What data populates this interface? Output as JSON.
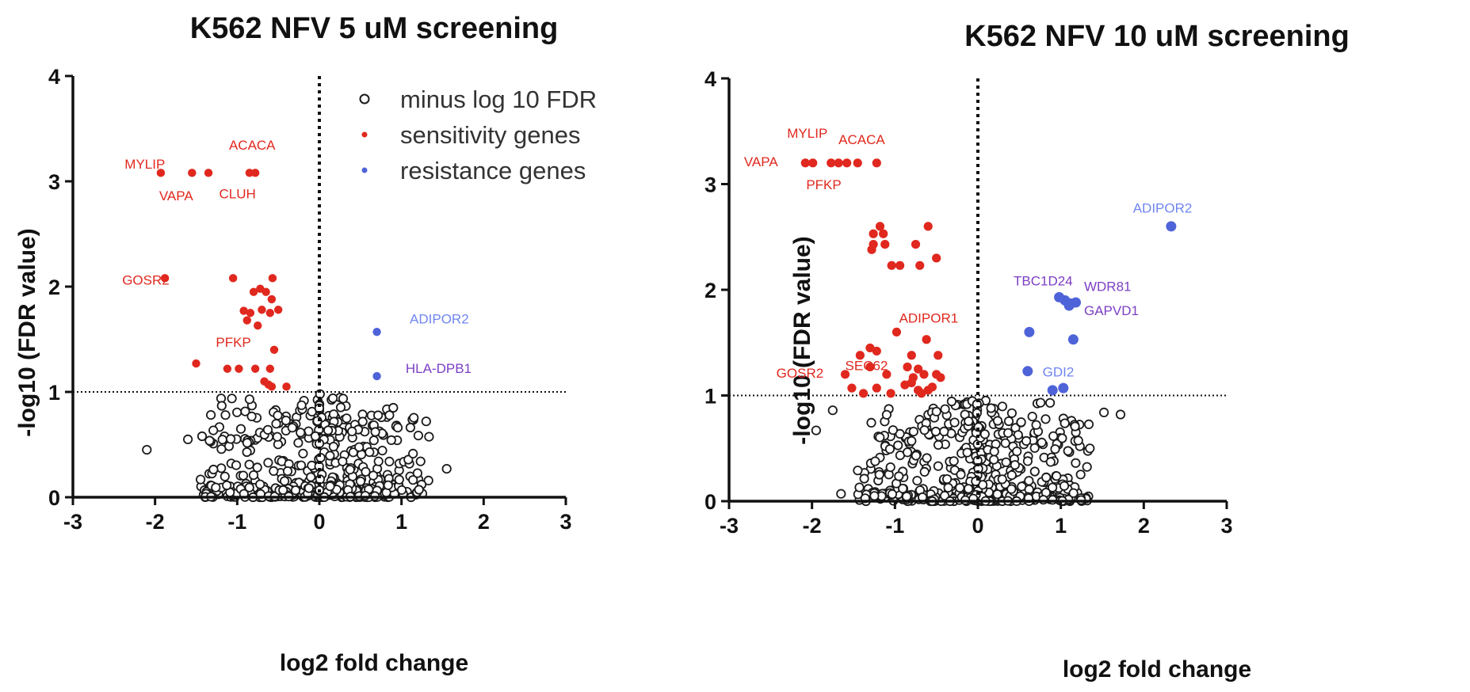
{
  "colors": {
    "sensitivity": "#e0281e",
    "resistance": "#4f63d9",
    "resistance_label": "#7b3fc4",
    "resistance_label_light": "#6f86f0",
    "null_point": "#1a1a1a"
  },
  "legend": [
    {
      "label": "minus log 10 FDR",
      "kind": "null"
    },
    {
      "label": "sensitivity genes",
      "kind": "sensitivity"
    },
    {
      "label": "resistance genes",
      "kind": "resistance"
    }
  ],
  "chart_data": [
    {
      "type": "scatter",
      "title": "K562 NFV 5 uM screening",
      "xlabel": "log2 fold change",
      "ylabel": "-log10 (FDR value)",
      "xlim": [
        -3,
        3
      ],
      "ylim": [
        0,
        4
      ],
      "x_ticks": [
        "-3",
        "-2",
        "-1",
        "0",
        "1",
        "2",
        "3"
      ],
      "y_ticks": [
        "0",
        "1",
        "2",
        "3",
        "4"
      ],
      "threshold_y": 1,
      "threshold_x": 0,
      "legend_position": "top-right",
      "sensitivity_points": [
        [
          -1.93,
          3.08
        ],
        [
          -1.55,
          3.08
        ],
        [
          -1.35,
          3.08
        ],
        [
          -0.85,
          3.08
        ],
        [
          -0.78,
          3.08
        ],
        [
          -1.88,
          2.08
        ],
        [
          -1.05,
          2.08
        ],
        [
          -0.57,
          2.08
        ],
        [
          -0.8,
          1.95
        ],
        [
          -0.72,
          1.98
        ],
        [
          -0.65,
          1.95
        ],
        [
          -0.58,
          1.88
        ],
        [
          -0.92,
          1.77
        ],
        [
          -0.84,
          1.75
        ],
        [
          -0.7,
          1.78
        ],
        [
          -0.6,
          1.75
        ],
        [
          -0.5,
          1.78
        ],
        [
          -0.88,
          1.68
        ],
        [
          -0.75,
          1.63
        ],
        [
          -0.55,
          1.4
        ],
        [
          -1.5,
          1.27
        ],
        [
          -1.12,
          1.22
        ],
        [
          -0.98,
          1.22
        ],
        [
          -0.78,
          1.22
        ],
        [
          -0.6,
          1.22
        ],
        [
          -0.67,
          1.1
        ],
        [
          -0.62,
          1.07
        ],
        [
          -0.58,
          1.05
        ],
        [
          -0.4,
          1.05
        ]
      ],
      "resistance_points": [
        [
          0.7,
          1.57
        ],
        [
          0.7,
          1.15
        ]
      ],
      "gene_labels": [
        {
          "text": "MYLIP",
          "x": -2.37,
          "y": 3.12,
          "kind": "sensitivity"
        },
        {
          "text": "ACACA",
          "x": -1.1,
          "y": 3.3,
          "kind": "sensitivity"
        },
        {
          "text": "VAPA",
          "x": -1.95,
          "y": 2.82,
          "kind": "sensitivity"
        },
        {
          "text": "CLUH",
          "x": -1.22,
          "y": 2.84,
          "kind": "sensitivity"
        },
        {
          "text": "GOSR2",
          "x": -2.4,
          "y": 2.02,
          "kind": "sensitivity"
        },
        {
          "text": "PFKP",
          "x": -1.26,
          "y": 1.43,
          "kind": "sensitivity"
        },
        {
          "text": "ADIPOR2",
          "x": 1.1,
          "y": 1.65,
          "kind": "resistance_light"
        },
        {
          "text": "HLA-DPB1",
          "x": 1.05,
          "y": 1.18,
          "kind": "resistance"
        }
      ],
      "null_points_generated": true
    },
    {
      "type": "scatter",
      "title": "K562 NFV 10 uM screening",
      "xlabel": "log2 fold change",
      "ylabel": "-log10 (FDR value)",
      "xlim": [
        -3,
        3
      ],
      "ylim": [
        0,
        4
      ],
      "x_ticks": [
        "-3",
        "-2",
        "-1",
        "0",
        "1",
        "2",
        "3"
      ],
      "y_ticks": [
        "0",
        "1",
        "2",
        "3",
        "4"
      ],
      "threshold_y": 1,
      "threshold_x": 0,
      "sensitivity_points": [
        [
          -2.08,
          3.2
        ],
        [
          -1.99,
          3.2
        ],
        [
          -1.77,
          3.2
        ],
        [
          -1.68,
          3.2
        ],
        [
          -1.58,
          3.2
        ],
        [
          -1.45,
          3.2
        ],
        [
          -1.22,
          3.2
        ],
        [
          -1.18,
          2.6
        ],
        [
          -1.26,
          2.53
        ],
        [
          -1.14,
          2.53
        ],
        [
          -0.6,
          2.6
        ],
        [
          -1.26,
          2.43
        ],
        [
          -1.12,
          2.43
        ],
        [
          -0.75,
          2.43
        ],
        [
          -1.28,
          2.38
        ],
        [
          -0.5,
          2.3
        ],
        [
          -1.04,
          2.23
        ],
        [
          -0.94,
          2.23
        ],
        [
          -0.7,
          2.23
        ],
        [
          -0.98,
          1.6
        ],
        [
          -0.62,
          1.53
        ],
        [
          -1.3,
          1.45
        ],
        [
          -1.22,
          1.42
        ],
        [
          -1.42,
          1.38
        ],
        [
          -0.8,
          1.38
        ],
        [
          -0.48,
          1.38
        ],
        [
          -1.6,
          1.2
        ],
        [
          -1.3,
          1.27
        ],
        [
          -0.85,
          1.27
        ],
        [
          -0.72,
          1.25
        ],
        [
          -1.1,
          1.2
        ],
        [
          -0.78,
          1.17
        ],
        [
          -0.65,
          1.2
        ],
        [
          -0.5,
          1.2
        ],
        [
          -0.45,
          1.17
        ],
        [
          -1.52,
          1.07
        ],
        [
          -1.22,
          1.07
        ],
        [
          -0.88,
          1.1
        ],
        [
          -0.8,
          1.12
        ],
        [
          -0.72,
          1.05
        ],
        [
          -0.6,
          1.05
        ],
        [
          -0.55,
          1.08
        ],
        [
          -1.38,
          1.02
        ],
        [
          -1.05,
          1.02
        ],
        [
          -0.68,
          1.02
        ]
      ],
      "resistance_points": [
        [
          2.33,
          2.6
        ],
        [
          0.98,
          1.93
        ],
        [
          1.05,
          1.9
        ],
        [
          1.12,
          1.87
        ],
        [
          1.18,
          1.88
        ],
        [
          1.1,
          1.85
        ],
        [
          0.62,
          1.6
        ],
        [
          1.15,
          1.53
        ],
        [
          0.6,
          1.23
        ],
        [
          0.9,
          1.05
        ],
        [
          1.03,
          1.07
        ]
      ],
      "gene_labels": [
        {
          "text": "MYLIP",
          "x": -2.3,
          "y": 3.44,
          "kind": "sensitivity"
        },
        {
          "text": "ACACA",
          "x": -1.68,
          "y": 3.38,
          "kind": "sensitivity"
        },
        {
          "text": "VAPA",
          "x": -2.82,
          "y": 3.17,
          "kind": "sensitivity"
        },
        {
          "text": "PFKP",
          "x": -2.07,
          "y": 2.95,
          "kind": "sensitivity"
        },
        {
          "text": "ADIPOR1",
          "x": -0.95,
          "y": 1.69,
          "kind": "sensitivity"
        },
        {
          "text": "GOSR2",
          "x": -2.43,
          "y": 1.17,
          "kind": "sensitivity"
        },
        {
          "text": "SEC62",
          "x": -1.6,
          "y": 1.24,
          "kind": "sensitivity"
        },
        {
          "text": "ADIPOR2",
          "x": 1.87,
          "y": 2.73,
          "kind": "resistance_light"
        },
        {
          "text": "TBC1D24",
          "x": 0.43,
          "y": 2.04,
          "kind": "resistance"
        },
        {
          "text": "WDR81",
          "x": 1.28,
          "y": 1.99,
          "kind": "resistance"
        },
        {
          "text": "GAPVD1",
          "x": 1.28,
          "y": 1.76,
          "kind": "resistance"
        },
        {
          "text": "GDI2",
          "x": 0.78,
          "y": 1.18,
          "kind": "resistance_light"
        }
      ],
      "null_points_generated": true
    }
  ]
}
